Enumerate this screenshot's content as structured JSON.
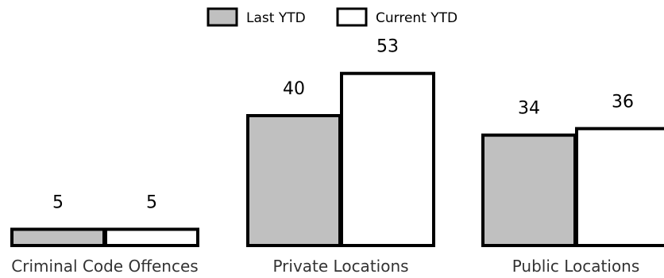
{
  "chart_data": {
    "type": "bar",
    "categories": [
      "Criminal Code Offences",
      "Private Locations",
      "Public Locations"
    ],
    "series": [
      {
        "name": "Last YTD",
        "values": [
          5,
          40,
          34
        ],
        "color": "#c0c0c0"
      },
      {
        "name": "Current YTD",
        "values": [
          5,
          53,
          36
        ],
        "color": "#ffffff"
      }
    ],
    "title": "",
    "xlabel": "",
    "ylabel": "",
    "ylim": [
      0,
      60
    ],
    "grid": false,
    "legend_position": "top-center",
    "data_labels": true,
    "bar_outline_color": "#000000"
  }
}
